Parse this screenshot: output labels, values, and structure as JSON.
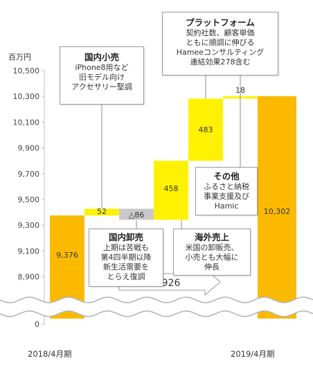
{
  "chart_data": {
    "type": "bar",
    "subtype": "waterfall",
    "unit": "百万円",
    "ylim": [
      8500,
      10500
    ],
    "yticks": [
      0,
      8700,
      8900,
      9100,
      9300,
      9500,
      9700,
      9900,
      10100,
      10300,
      10500
    ],
    "categories": [
      "2018/4月期",
      "国内小売",
      "国内卸売",
      "海外売上",
      "プラットフォーム",
      "その他",
      "2019/4月期"
    ],
    "x_labels": [
      "2018/4月期",
      "2019/4月期"
    ],
    "bars": [
      {
        "name": "2018/4月期",
        "kind": "total",
        "value": 9376,
        "label": "9,376"
      },
      {
        "name": "国内小売",
        "kind": "increase",
        "value": 52,
        "label": "52"
      },
      {
        "name": "国内卸売",
        "kind": "decrease",
        "value": -86,
        "label": "△86"
      },
      {
        "name": "海外売上",
        "kind": "increase",
        "value": 458,
        "label": "458"
      },
      {
        "name": "プラットフォーム",
        "kind": "increase",
        "value": 483,
        "label": "483"
      },
      {
        "name": "その他",
        "kind": "increase",
        "value": 18,
        "label": "18"
      },
      {
        "name": "2019/4月期",
        "kind": "total",
        "value": 10302,
        "label": "10,302"
      }
    ],
    "total_change_label": "＋926",
    "axis_break": true,
    "colors": {
      "total": "#FBBA00",
      "increase": "#FFF200",
      "decrease": "#C9C9C9",
      "connector": "#999999"
    }
  },
  "annotations": {
    "domestic_retail": {
      "title": "国内小売",
      "lines": [
        "iPhone8用など",
        "旧モデル向け",
        "アクセサリー堅調"
      ]
    },
    "domestic_wholesale": {
      "title": "国内卸売",
      "lines": [
        "上期は苦戦も",
        "第4四半期以降",
        "新生活需要を",
        "とらえ復調"
      ]
    },
    "overseas": {
      "title": "海外売上",
      "lines": [
        "米国の卸販売、",
        "小売とも大幅に",
        "伸長"
      ]
    },
    "platform": {
      "title": "プラットフォーム",
      "lines": [
        "契約社数、顧客単価",
        "ともに順調に伸びる",
        "Hameeコンサルティング",
        "連結効果278含む"
      ]
    },
    "other": {
      "title": "その他",
      "lines": [
        "ふるさと納税",
        "事業支援及び",
        "Hamic"
      ]
    }
  }
}
